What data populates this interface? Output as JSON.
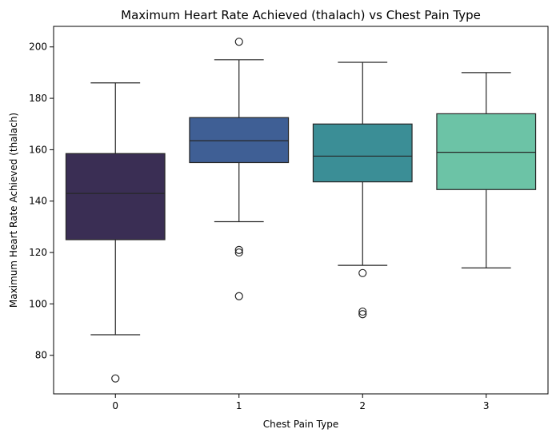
{
  "chart_data": {
    "type": "boxplot",
    "title": "Maximum Heart Rate Achieved (thalach) vs Chest Pain Type",
    "xlabel": "Chest Pain Type",
    "ylabel": "Maximum Heart Rate Achieved (thalach)",
    "ylim": [
      65,
      208
    ],
    "yticks": [
      80,
      100,
      120,
      140,
      160,
      180,
      200
    ],
    "grid": false,
    "categories": [
      "0",
      "1",
      "2",
      "3"
    ],
    "colors": [
      "#3a2e54",
      "#3f5f95",
      "#3b8e96",
      "#6cc3a6"
    ],
    "boxes": [
      {
        "category": "0",
        "whisker_low": 88,
        "q1": 125,
        "median": 143,
        "q3": 158.5,
        "whisker_high": 186,
        "outliers": [
          71
        ]
      },
      {
        "category": "1",
        "whisker_low": 132,
        "q1": 155,
        "median": 163.5,
        "q3": 172.5,
        "whisker_high": 195,
        "outliers": [
          202,
          121,
          120,
          103
        ]
      },
      {
        "category": "2",
        "whisker_low": 115,
        "q1": 147.5,
        "median": 157.5,
        "q3": 170,
        "whisker_high": 194,
        "outliers": [
          112,
          97,
          96
        ]
      },
      {
        "category": "3",
        "whisker_low": 114,
        "q1": 144.5,
        "median": 159,
        "q3": 174,
        "whisker_high": 190,
        "outliers": []
      }
    ]
  }
}
